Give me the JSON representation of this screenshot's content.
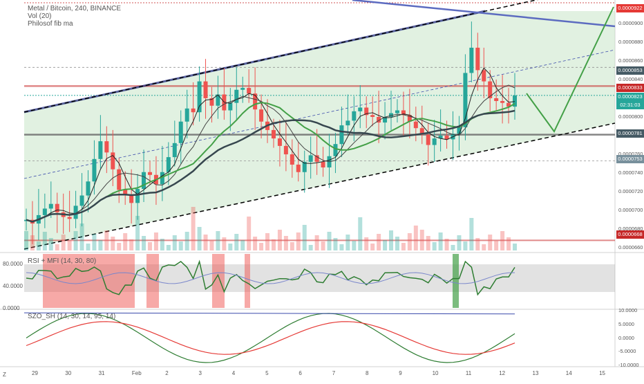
{
  "legend": {
    "symbol": "Metal / Bitcoin, 240, BINANCE",
    "vol": "Vol (20)",
    "fib": "Philosof fib ma",
    "rsi": "RSI + MFI (14, 30, 80)",
    "szo": "SZO_SH (14, 30, 14, 95, 14)"
  },
  "price_tags": {
    "top": "0.0000922",
    "r1": "0.0000853",
    "r2": "0.0000833",
    "last": "0.0000823",
    "countdown": "02:31:03",
    "s1": "0.0000781",
    "s2": "0.0000753",
    "s3": "0.0000668"
  },
  "price_axis": [
    "0.0000900",
    "0.0000880",
    "0.0000860",
    "0.0000840",
    "0.0000800",
    "0.0000760",
    "0.0000740",
    "0.0000720",
    "0.0000700",
    "0.0000680",
    "0.0000660"
  ],
  "rsi_axis": [
    "80.0000",
    "40.0000",
    "0.0000"
  ],
  "szo_axis": [
    "10.0000",
    "5.0000",
    "0.0000",
    "-5.0000",
    "-10.0000"
  ],
  "x_ticks": [
    "29",
    "30",
    "31",
    "Feb",
    "2",
    "3",
    "4",
    "5",
    "6",
    "7",
    "8",
    "9",
    "10",
    "11",
    "12",
    "13",
    "14",
    "15"
  ],
  "corner_mark": "Z",
  "colors": {
    "up": "#26a69a",
    "down": "#ef5350",
    "channel": "#c8e6c9",
    "trend": "#000000",
    "ma_green": "#43a047"
  },
  "chart_data": {
    "type": "candlestick",
    "title": "Metal / Bitcoin, 240, BINANCE",
    "x_ticks": [
      "29",
      "30",
      "31",
      "Feb",
      "2",
      "3",
      "4",
      "5",
      "6",
      "7",
      "8",
      "9",
      "10",
      "11",
      "12",
      "13",
      "14",
      "15"
    ],
    "ylim": [
      6.55e-05,
      9.25e-05
    ],
    "last_price": 8.23e-05,
    "horizontal_levels": [
      9.22e-05,
      8.53e-05,
      8.33e-05,
      7.81e-05,
      7.53e-05,
      6.68e-05
    ],
    "close_series": [
      6.9e-05,
      6.86e-05,
      6.95e-05,
      7.02e-05,
      7.07e-05,
      6.98e-05,
      6.93e-05,
      6.91e-05,
      7.05e-05,
      7.16e-05,
      7.31e-05,
      7.55e-05,
      7.74e-05,
      7.62e-05,
      7.44e-05,
      7.22e-05,
      7.16e-05,
      7.08e-05,
      7.23e-05,
      7.41e-05,
      7.38e-05,
      7.28e-05,
      7.41e-05,
      7.57e-05,
      7.72e-05,
      7.95e-05,
      8.09e-05,
      8.05e-05,
      8.38e-05,
      8.2e-05,
      8.12e-05,
      8.24e-05,
      8.07e-05,
      8.15e-05,
      8.29e-05,
      8.31e-05,
      8.25e-05,
      8.08e-05,
      7.95e-05,
      7.86e-05,
      7.77e-05,
      7.69e-05,
      7.6e-05,
      7.49e-05,
      7.41e-05,
      7.52e-05,
      7.59e-05,
      7.52e-05,
      7.46e-05,
      7.58e-05,
      7.71e-05,
      7.91e-05,
      7.96e-05,
      8.06e-05,
      8.1e-05,
      8.02e-05,
      8e-05,
      7.94e-05,
      8e-05,
      8.04e-05,
      8.07e-05,
      8.02e-05,
      7.95e-05,
      7.88e-05,
      7.81e-05,
      7.7e-05,
      7.77e-05,
      7.8e-05,
      7.76e-05,
      7.82e-05,
      7.89e-05,
      8.47e-05,
      8.74e-05,
      8.5e-05,
      8.38e-05,
      8.2e-05,
      8.17e-05,
      8.15e-05,
      8.11e-05,
      8.23e-05
    ],
    "rsi_range": [
      0,
      100
    ],
    "szo_range": [
      -10,
      10
    ]
  }
}
